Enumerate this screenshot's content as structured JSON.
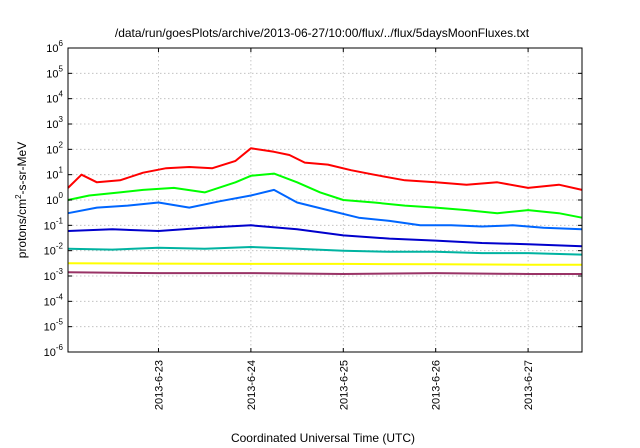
{
  "chart_data": {
    "type": "line",
    "title": "/data/run/goesPlots/archive/2013-06-27/10:00/flux/../flux/5daysMoonFluxes.txt",
    "xlabel": "Coordinated Universal Time (UTC)",
    "ylabel": "protons/cm²-s-sr-MeV",
    "yscale": "log",
    "ylim_exponents": [
      -6,
      6
    ],
    "y_tick_exponents": [
      -6,
      -5,
      -4,
      -3,
      -2,
      -1,
      0,
      1,
      2,
      3,
      4,
      5,
      6
    ],
    "x_range_days": [
      "2013-06-22 00:30",
      "2013-06-27 14:00"
    ],
    "x_ticks": [
      "2013-6-23",
      "2013-6-24",
      "2013-6-25",
      "2013-6-26",
      "2013-6-27"
    ],
    "grid": true,
    "series": [
      {
        "color": "#ff0000",
        "x": [
          "2013-06-22 00:30",
          "2013-06-22 04:00",
          "2013-06-22 08:00",
          "2013-06-22 14:00",
          "2013-06-22 20:00",
          "2013-06-23 02:00",
          "2013-06-23 08:00",
          "2013-06-23 14:00",
          "2013-06-23 20:00",
          "2013-06-24 00:00",
          "2013-06-24 06:00",
          "2013-06-24 10:00",
          "2013-06-24 14:00",
          "2013-06-24 20:00",
          "2013-06-25 02:00",
          "2013-06-25 08:00",
          "2013-06-25 16:00",
          "2013-06-26 00:00",
          "2013-06-26 08:00",
          "2013-06-26 16:00",
          "2013-06-27 00:00",
          "2013-06-27 08:00",
          "2013-06-27 14:00"
        ],
        "y": [
          3,
          10,
          5,
          6,
          12,
          18,
          20,
          18,
          35,
          110,
          80,
          60,
          30,
          25,
          15,
          10,
          6,
          5,
          4,
          5,
          3,
          4,
          2.5
        ]
      },
      {
        "color": "#00ff00",
        "x": [
          "2013-06-22 00:30",
          "2013-06-22 06:00",
          "2013-06-22 14:00",
          "2013-06-22 20:00",
          "2013-06-23 04:00",
          "2013-06-23 12:00",
          "2013-06-23 20:00",
          "2013-06-24 00:00",
          "2013-06-24 06:00",
          "2013-06-24 12:00",
          "2013-06-24 18:00",
          "2013-06-25 00:00",
          "2013-06-25 08:00",
          "2013-06-25 16:00",
          "2013-06-26 00:00",
          "2013-06-26 08:00",
          "2013-06-26 16:00",
          "2013-06-27 00:00",
          "2013-06-27 08:00",
          "2013-06-27 14:00"
        ],
        "y": [
          1,
          1.5,
          2,
          2.5,
          3,
          2,
          5,
          9,
          11,
          5,
          2,
          1,
          0.8,
          0.6,
          0.5,
          0.4,
          0.3,
          0.4,
          0.3,
          0.2
        ]
      },
      {
        "color": "#0066ff",
        "x": [
          "2013-06-22 00:30",
          "2013-06-22 08:00",
          "2013-06-22 16:00",
          "2013-06-23 00:00",
          "2013-06-23 08:00",
          "2013-06-23 16:00",
          "2013-06-24 00:00",
          "2013-06-24 06:00",
          "2013-06-24 12:00",
          "2013-06-24 20:00",
          "2013-06-25 04:00",
          "2013-06-25 12:00",
          "2013-06-25 20:00",
          "2013-06-26 04:00",
          "2013-06-26 12:00",
          "2013-06-26 20:00",
          "2013-06-27 04:00",
          "2013-06-27 14:00"
        ],
        "y": [
          0.3,
          0.5,
          0.6,
          0.8,
          0.5,
          0.9,
          1.5,
          2.5,
          0.8,
          0.4,
          0.2,
          0.15,
          0.1,
          0.1,
          0.09,
          0.1,
          0.08,
          0.07
        ]
      },
      {
        "color": "#0000cc",
        "x": [
          "2013-06-22 00:30",
          "2013-06-22 12:00",
          "2013-06-23 00:00",
          "2013-06-23 12:00",
          "2013-06-24 00:00",
          "2013-06-24 12:00",
          "2013-06-25 00:00",
          "2013-06-25 12:00",
          "2013-06-26 00:00",
          "2013-06-26 12:00",
          "2013-06-27 00:00",
          "2013-06-27 14:00"
        ],
        "y": [
          0.06,
          0.07,
          0.06,
          0.08,
          0.1,
          0.07,
          0.04,
          0.03,
          0.025,
          0.02,
          0.018,
          0.015
        ]
      },
      {
        "color": "#00b3a1",
        "x": [
          "2013-06-22 00:30",
          "2013-06-22 12:00",
          "2013-06-23 00:00",
          "2013-06-23 12:00",
          "2013-06-24 00:00",
          "2013-06-24 12:00",
          "2013-06-25 00:00",
          "2013-06-25 12:00",
          "2013-06-26 00:00",
          "2013-06-26 12:00",
          "2013-06-27 00:00",
          "2013-06-27 14:00"
        ],
        "y": [
          0.012,
          0.011,
          0.013,
          0.012,
          0.014,
          0.012,
          0.01,
          0.009,
          0.009,
          0.008,
          0.008,
          0.007
        ]
      },
      {
        "color": "#ffff00",
        "x": [
          "2013-06-22 00:30",
          "2013-06-23 00:00",
          "2013-06-24 00:00",
          "2013-06-25 00:00",
          "2013-06-26 00:00",
          "2013-06-27 00:00",
          "2013-06-27 14:00"
        ],
        "y": [
          0.0032,
          0.0031,
          0.003,
          0.003,
          0.0029,
          0.0028,
          0.0028
        ]
      },
      {
        "color": "#993366",
        "x": [
          "2013-06-22 00:30",
          "2013-06-23 00:00",
          "2013-06-24 00:00",
          "2013-06-25 00:00",
          "2013-06-26 00:00",
          "2013-06-27 00:00",
          "2013-06-27 14:00"
        ],
        "y": [
          0.0014,
          0.0013,
          0.0013,
          0.0012,
          0.0013,
          0.0012,
          0.0012
        ]
      }
    ]
  }
}
